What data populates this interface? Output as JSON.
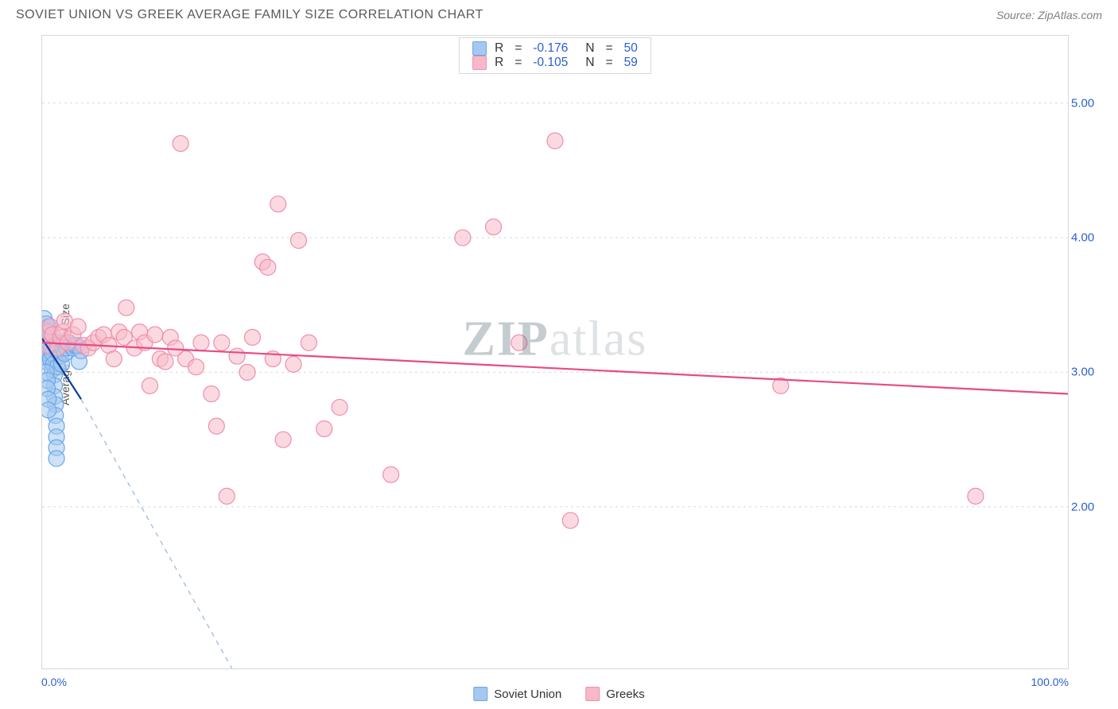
{
  "title": "SOVIET UNION VS GREEK AVERAGE FAMILY SIZE CORRELATION CHART",
  "source_label": "Source: ZipAtlas.com",
  "ylabel": "Average Family Size",
  "watermark_a": "ZIP",
  "watermark_b": "atlas",
  "chart": {
    "type": "scatter",
    "background_color": "#ffffff",
    "frame_border_color": "#d8d8d8",
    "grid_color": "#d9d9d9",
    "xlim": [
      0,
      100
    ],
    "ylim": [
      0.8,
      5.5
    ],
    "xtick_labels": [
      "0.0%",
      "100.0%"
    ],
    "xtick_positions": [
      0,
      100
    ],
    "ytick_labels": [
      "2.00",
      "3.00",
      "4.00",
      "5.00"
    ],
    "ytick_positions": [
      2.0,
      3.0,
      4.0,
      5.0
    ],
    "tick_label_color": "#2a5fd4",
    "tick_fontsize": 15,
    "marker_radius": 10,
    "marker_stroke_width": 1.2,
    "trend_line_width": 2.2,
    "series": [
      {
        "name": "Soviet Union",
        "fill_color": "#a4c8f0",
        "fill_opacity": 0.55,
        "stroke_color": "#6aa6e6",
        "trend_color": "#0d3e9e",
        "trend_dash_color": "#a8bede",
        "trend": {
          "x1": 0,
          "y1": 3.25,
          "x2": 3.8,
          "y2": 2.8
        },
        "trend_dash": {
          "x1": 3.8,
          "y1": 2.8,
          "x2": 18.5,
          "y2": 0.8
        },
        "R_label": "R",
        "R_value": "-0.176",
        "N_label": "N",
        "N_value": "50",
        "points": [
          [
            0.2,
            3.4
          ],
          [
            0.3,
            3.32
          ],
          [
            0.3,
            3.24
          ],
          [
            0.4,
            3.18
          ],
          [
            0.3,
            3.12
          ],
          [
            0.4,
            3.08
          ],
          [
            0.5,
            3.2
          ],
          [
            0.5,
            3.28
          ],
          [
            0.6,
            3.34
          ],
          [
            0.6,
            3.14
          ],
          [
            0.7,
            3.22
          ],
          [
            0.7,
            3.3
          ],
          [
            0.8,
            3.1
          ],
          [
            0.8,
            3.26
          ],
          [
            0.9,
            3.18
          ],
          [
            1.0,
            3.14
          ],
          [
            1.0,
            3.02
          ],
          [
            1.1,
            3.06
          ],
          [
            1.2,
            2.98
          ],
          [
            1.2,
            2.9
          ],
          [
            1.2,
            2.82
          ],
          [
            1.3,
            2.76
          ],
          [
            1.3,
            2.68
          ],
          [
            1.4,
            2.6
          ],
          [
            1.4,
            2.52
          ],
          [
            1.4,
            2.44
          ],
          [
            1.4,
            2.36
          ],
          [
            1.5,
            3.04
          ],
          [
            1.5,
            3.16
          ],
          [
            1.6,
            3.2
          ],
          [
            1.7,
            3.22
          ],
          [
            1.8,
            3.12
          ],
          [
            1.9,
            3.06
          ],
          [
            2.0,
            3.18
          ],
          [
            2.1,
            3.22
          ],
          [
            2.2,
            3.14
          ],
          [
            2.4,
            3.18
          ],
          [
            2.6,
            3.22
          ],
          [
            2.8,
            3.2
          ],
          [
            3.0,
            3.18
          ],
          [
            3.2,
            3.2
          ],
          [
            3.4,
            3.2
          ],
          [
            3.6,
            3.08
          ],
          [
            3.8,
            3.16
          ],
          [
            0.4,
            3.0
          ],
          [
            0.5,
            2.94
          ],
          [
            0.5,
            2.88
          ],
          [
            0.6,
            2.8
          ],
          [
            0.6,
            2.72
          ],
          [
            0.4,
            3.36
          ]
        ]
      },
      {
        "name": "Greeks",
        "fill_color": "#f7b9c9",
        "fill_opacity": 0.55,
        "stroke_color": "#ef8eaa",
        "trend_color": "#e84a84",
        "trend": {
          "x1": 0,
          "y1": 3.22,
          "x2": 100,
          "y2": 2.84
        },
        "R_label": "R",
        "R_value": "-0.105",
        "N_label": "N",
        "N_value": "59",
        "points": [
          [
            0.5,
            3.2
          ],
          [
            0.6,
            3.3
          ],
          [
            0.8,
            3.34
          ],
          [
            1.0,
            3.28
          ],
          [
            1.5,
            3.18
          ],
          [
            1.8,
            3.26
          ],
          [
            2.0,
            3.3
          ],
          [
            2.2,
            3.38
          ],
          [
            2.5,
            3.22
          ],
          [
            3.0,
            3.28
          ],
          [
            3.5,
            3.34
          ],
          [
            4.0,
            3.2
          ],
          [
            4.5,
            3.18
          ],
          [
            5.0,
            3.22
          ],
          [
            5.5,
            3.26
          ],
          [
            6.0,
            3.28
          ],
          [
            6.5,
            3.2
          ],
          [
            7.0,
            3.1
          ],
          [
            7.5,
            3.3
          ],
          [
            8.0,
            3.26
          ],
          [
            8.2,
            3.48
          ],
          [
            9.0,
            3.18
          ],
          [
            9.5,
            3.3
          ],
          [
            10.0,
            3.22
          ],
          [
            10.5,
            2.9
          ],
          [
            11.0,
            3.28
          ],
          [
            11.5,
            3.1
          ],
          [
            12.0,
            3.08
          ],
          [
            12.5,
            3.26
          ],
          [
            13.0,
            3.18
          ],
          [
            13.5,
            4.7
          ],
          [
            14.0,
            3.1
          ],
          [
            15.0,
            3.04
          ],
          [
            15.5,
            3.22
          ],
          [
            16.5,
            2.84
          ],
          [
            17.0,
            2.6
          ],
          [
            17.5,
            3.22
          ],
          [
            18.0,
            2.08
          ],
          [
            19.0,
            3.12
          ],
          [
            20.0,
            3.0
          ],
          [
            20.5,
            3.26
          ],
          [
            21.5,
            3.82
          ],
          [
            22.0,
            3.78
          ],
          [
            22.5,
            3.1
          ],
          [
            23.0,
            4.25
          ],
          [
            23.5,
            2.5
          ],
          [
            24.5,
            3.06
          ],
          [
            25.0,
            3.98
          ],
          [
            26.0,
            3.22
          ],
          [
            27.5,
            2.58
          ],
          [
            29.0,
            2.74
          ],
          [
            34.0,
            2.24
          ],
          [
            41.0,
            4.0
          ],
          [
            44.0,
            4.08
          ],
          [
            46.5,
            3.22
          ],
          [
            50.0,
            4.72
          ],
          [
            51.5,
            1.9
          ],
          [
            72.0,
            2.9
          ],
          [
            91.0,
            2.08
          ]
        ]
      }
    ]
  },
  "legend_bottom": [
    {
      "label": "Soviet Union",
      "fill": "#a4c8f0",
      "stroke": "#6aa6e6"
    },
    {
      "label": "Greeks",
      "fill": "#f7b9c9",
      "stroke": "#ef8eaa"
    }
  ]
}
